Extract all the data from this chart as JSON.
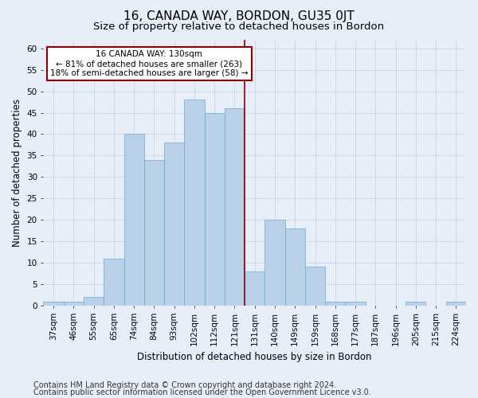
{
  "title": "16, CANADA WAY, BORDON, GU35 0JT",
  "subtitle": "Size of property relative to detached houses in Bordon",
  "xlabel": "Distribution of detached houses by size in Bordon",
  "ylabel": "Number of detached properties",
  "categories": [
    "37sqm",
    "46sqm",
    "55sqm",
    "65sqm",
    "74sqm",
    "84sqm",
    "93sqm",
    "102sqm",
    "112sqm",
    "121sqm",
    "131sqm",
    "140sqm",
    "149sqm",
    "159sqm",
    "168sqm",
    "177sqm",
    "187sqm",
    "196sqm",
    "205sqm",
    "215sqm",
    "224sqm"
  ],
  "values": [
    1,
    1,
    2,
    11,
    40,
    34,
    38,
    48,
    45,
    46,
    8,
    20,
    18,
    9,
    1,
    1,
    0,
    0,
    1,
    0,
    1
  ],
  "bar_color": "#b8d0e8",
  "bar_edge_color": "#6aaad4",
  "vline_color": "#8b0000",
  "annotation_text": "16 CANADA WAY: 130sqm\n← 81% of detached houses are smaller (263)\n18% of semi-detached houses are larger (58) →",
  "annotation_box_color": "#8b0000",
  "annotation_bg_color": "#ffffff",
  "ylim": [
    0,
    62
  ],
  "yticks": [
    0,
    5,
    10,
    15,
    20,
    25,
    30,
    35,
    40,
    45,
    50,
    55,
    60
  ],
  "grid_color": "#c8d4e8",
  "bg_color": "#e8eef8",
  "footer_line1": "Contains HM Land Registry data © Crown copyright and database right 2024.",
  "footer_line2": "Contains public sector information licensed under the Open Government Licence v3.0.",
  "title_fontsize": 11,
  "subtitle_fontsize": 9.5,
  "axis_label_fontsize": 8.5,
  "tick_fontsize": 7.5,
  "footer_fontsize": 7
}
